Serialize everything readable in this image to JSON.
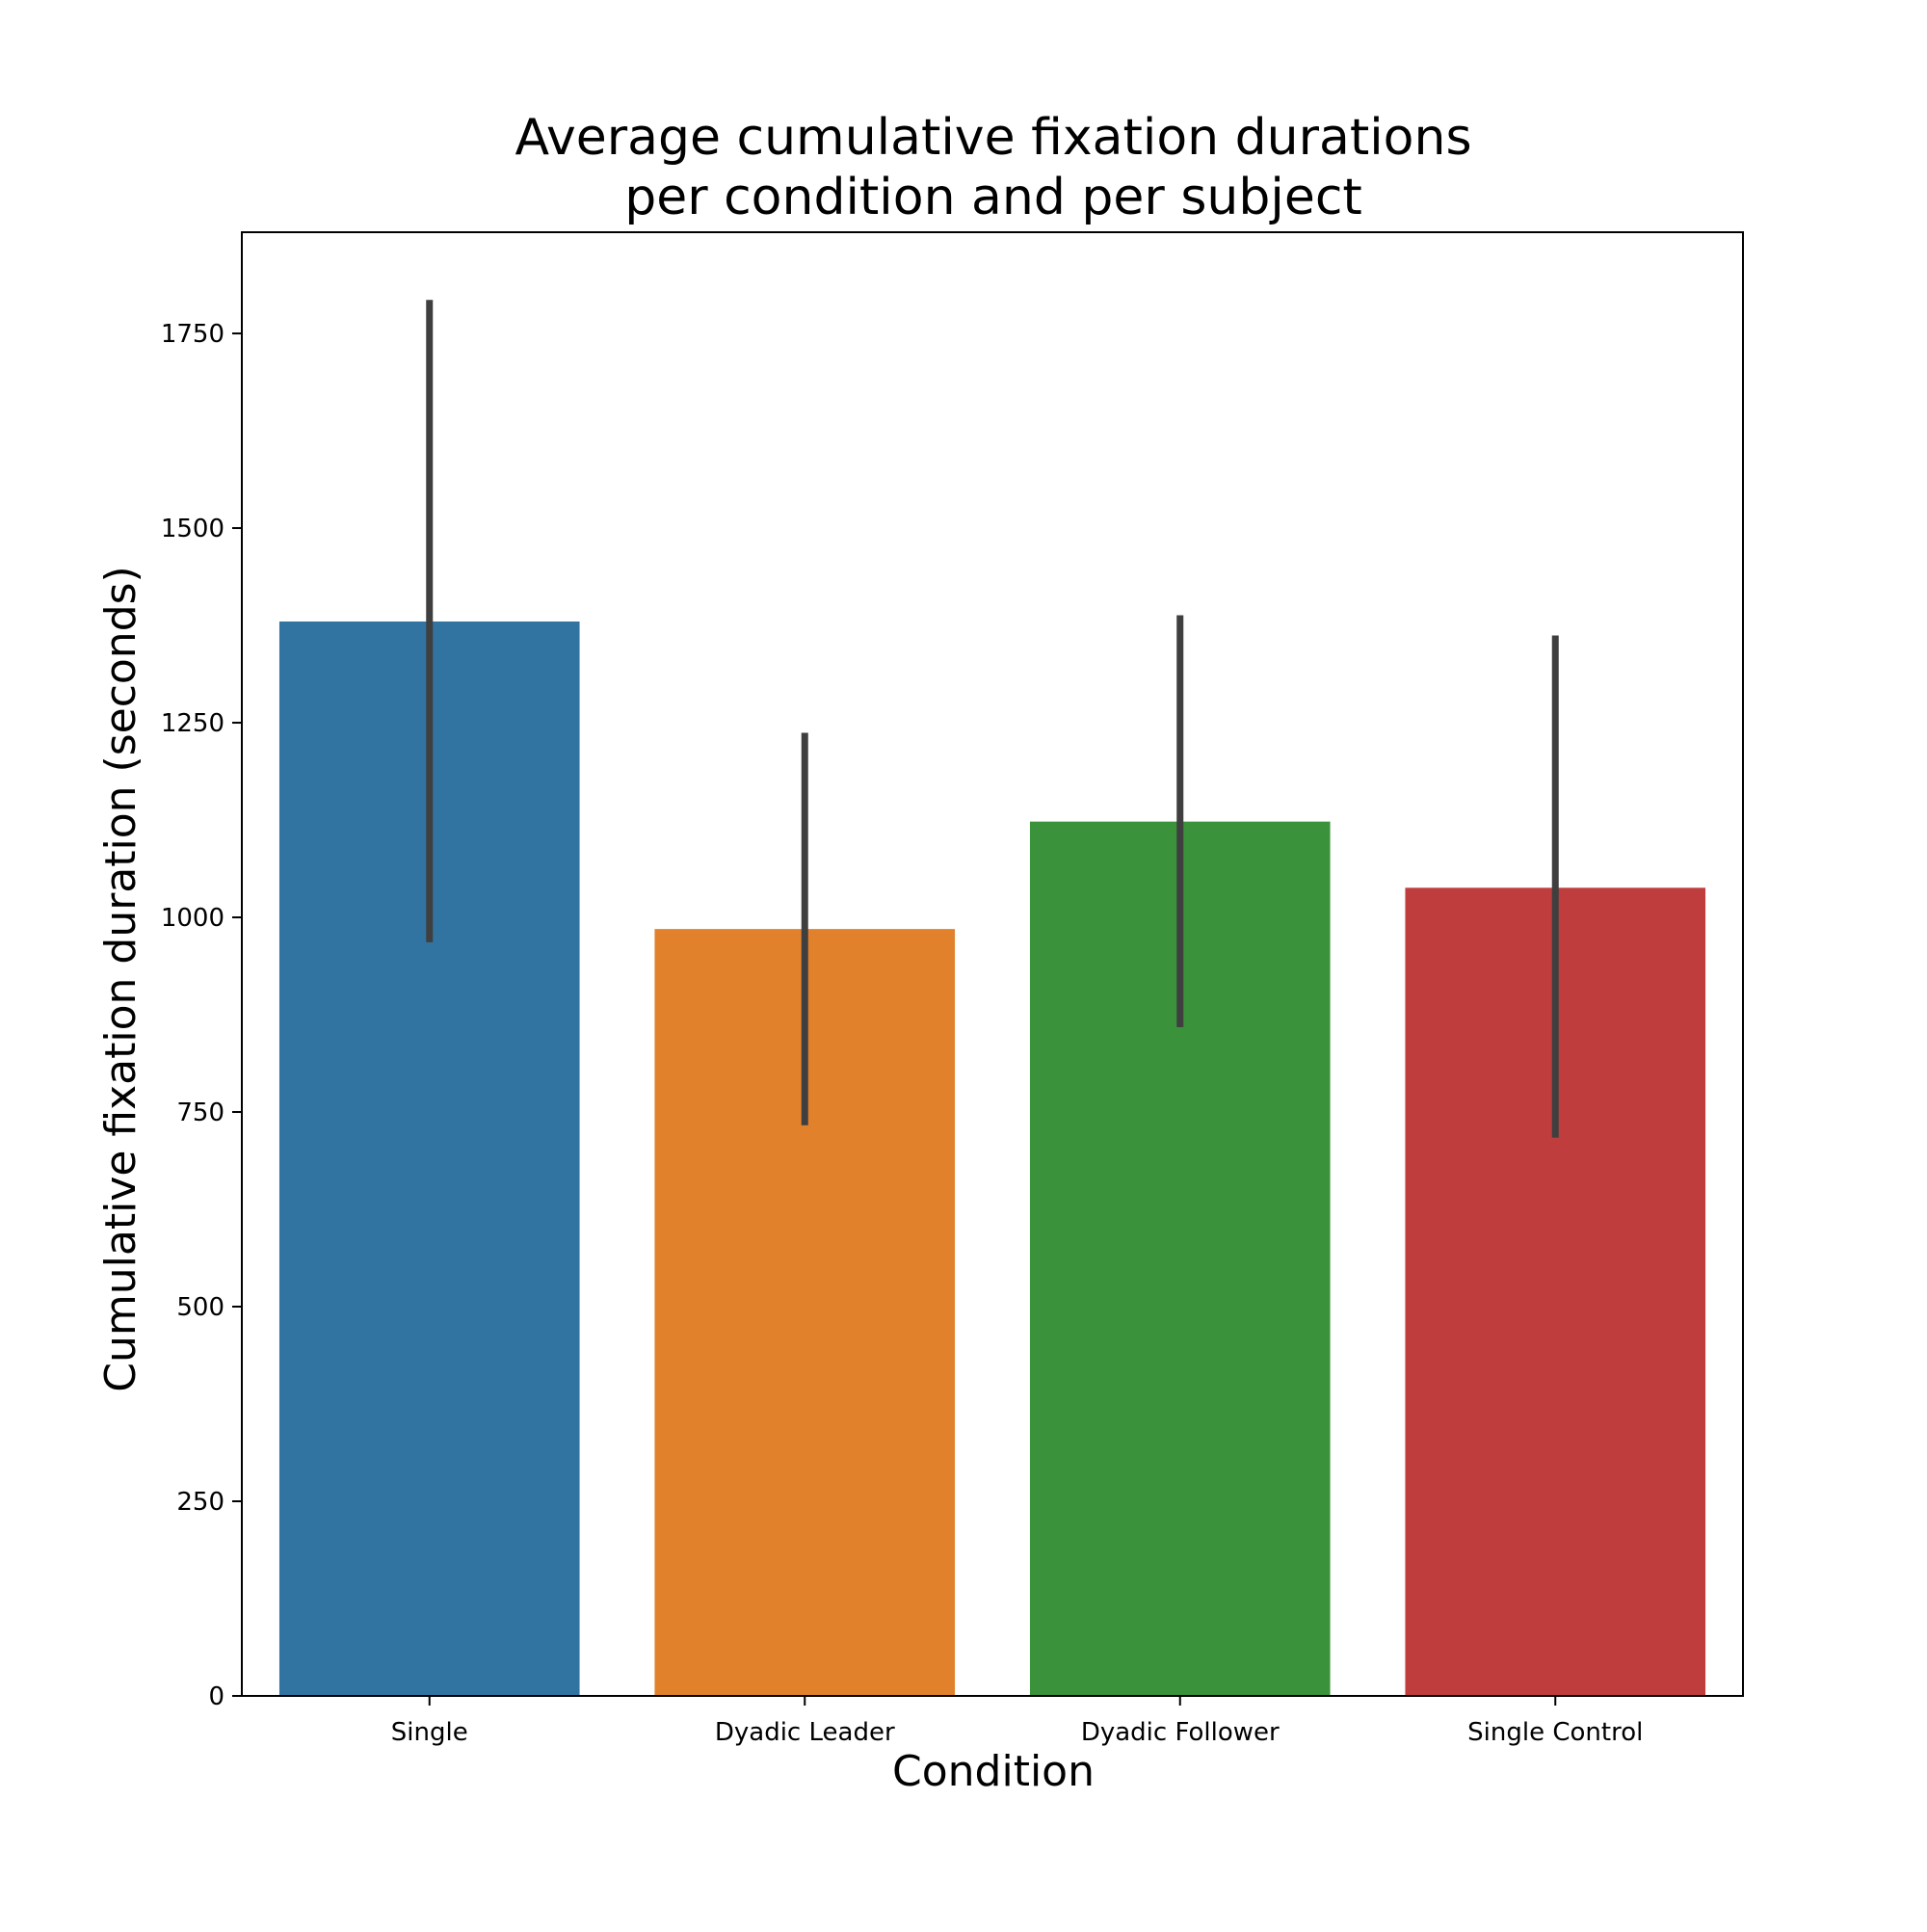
{
  "chart_data": {
    "type": "bar",
    "title": [
      "Average cumulative fixation durations",
      "per condition and per subject"
    ],
    "xlabel": "Condition",
    "ylabel": "Cumulative fixation duration (seconds)",
    "categories": [
      "Single",
      "Dyadic Leader",
      "Dyadic Follower",
      "Single Control"
    ],
    "values": [
      1380,
      985,
      1123,
      1038
    ],
    "error_low": [
      968,
      733,
      859,
      717
    ],
    "error_high": [
      1793,
      1237,
      1388,
      1362
    ],
    "colors": [
      "#3274a1",
      "#e1812c",
      "#3a923a",
      "#c03d3e"
    ],
    "error_color": "#3f3f3f",
    "ylim": [
      0,
      1880
    ],
    "yticks": [
      0,
      250,
      500,
      750,
      1000,
      1250,
      1500,
      1750
    ],
    "grid": false,
    "legend": "none"
  }
}
